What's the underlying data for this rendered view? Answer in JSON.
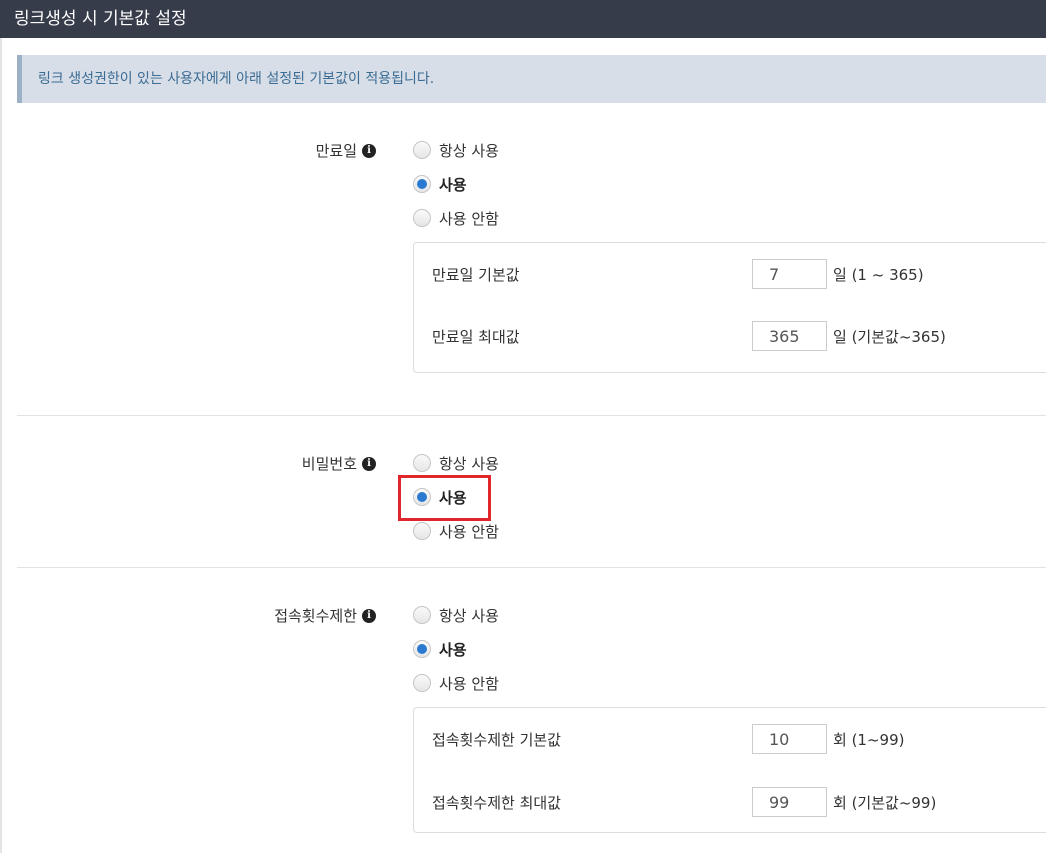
{
  "header": {
    "title": "링크생성 시 기본값 설정"
  },
  "info": {
    "text": "링크 생성권한이 있는 사용자에게 아래 설정된 기본값이 적용됩니다."
  },
  "sections": [
    {
      "label": "만료일",
      "icon": "info-icon",
      "options": [
        "항상 사용",
        "사용",
        "사용 안함"
      ],
      "selected": "사용",
      "rows": [
        {
          "label": "만료일 기본값",
          "value": "7",
          "unit": "일 (1 ~ 365)"
        },
        {
          "label": "만료일 최대값",
          "value": "365",
          "unit": "일 (기본값~365)"
        }
      ]
    },
    {
      "label": "비밀번호",
      "icon": "info-icon",
      "options": [
        "항상 사용",
        "사용",
        "사용 안함"
      ],
      "selected": "사용"
    },
    {
      "label": "접속횟수제한",
      "icon": "info-icon",
      "options": [
        "항상 사용",
        "사용",
        "사용 안함"
      ],
      "selected": "사용",
      "rows": [
        {
          "label": "접속횟수제한 기본값",
          "value": "10",
          "unit": "회 (1~99)"
        },
        {
          "label": "접속횟수제한 최대값",
          "value": "99",
          "unit": "회 (기본값~99)"
        }
      ]
    }
  ],
  "colors": {
    "header_bg": "#363c4a",
    "radio_checked": "#2a7ad2",
    "highlight": "#e0262a",
    "info_bg": "#d7dee8"
  }
}
